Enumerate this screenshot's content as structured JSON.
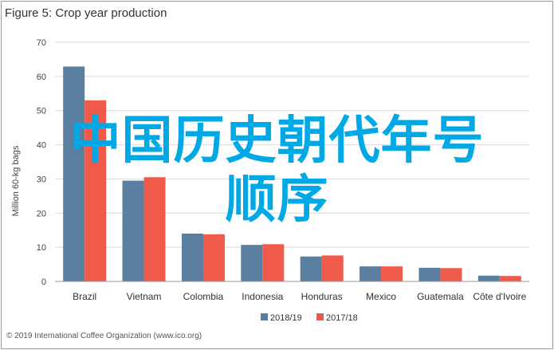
{
  "figure_title": "Figure 5: Crop year production",
  "overlay": {
    "line1": "中国历史朝代年号",
    "line2": "顺序",
    "color": "#00a9e6"
  },
  "source_note": "© 2019 International Coffee Organization (www.ico.org)",
  "chart_data": {
    "type": "bar",
    "title": "Figure 5: Crop year production",
    "xlabel": "",
    "ylabel": "Million 60-kg bags",
    "ylim": [
      0,
      70
    ],
    "yticks": [
      0,
      10,
      20,
      30,
      40,
      50,
      60,
      70
    ],
    "grid": true,
    "legend_position": "bottom",
    "categories": [
      "Brazil",
      "Vietnam",
      "Colombia",
      "Indonesia",
      "Honduras",
      "Mexico",
      "Guatemala",
      "Côte d'Ivoire"
    ],
    "category_labels": [
      "Brazil",
      "Vietnam",
      "Colombia",
      "Indonesia",
      "Honduras",
      "Mexico",
      "Guatemala",
      "Côte d'Ivoire"
    ],
    "series": [
      {
        "name": "2018/19",
        "color": "#5a7fa0",
        "values": [
          62.9,
          29.5,
          14.0,
          10.7,
          7.3,
          4.4,
          4.0,
          1.7
        ]
      },
      {
        "name": "2017/18",
        "color": "#f05a4a",
        "values": [
          53.0,
          30.5,
          13.8,
          10.9,
          7.6,
          4.4,
          3.9,
          1.6
        ]
      }
    ]
  }
}
